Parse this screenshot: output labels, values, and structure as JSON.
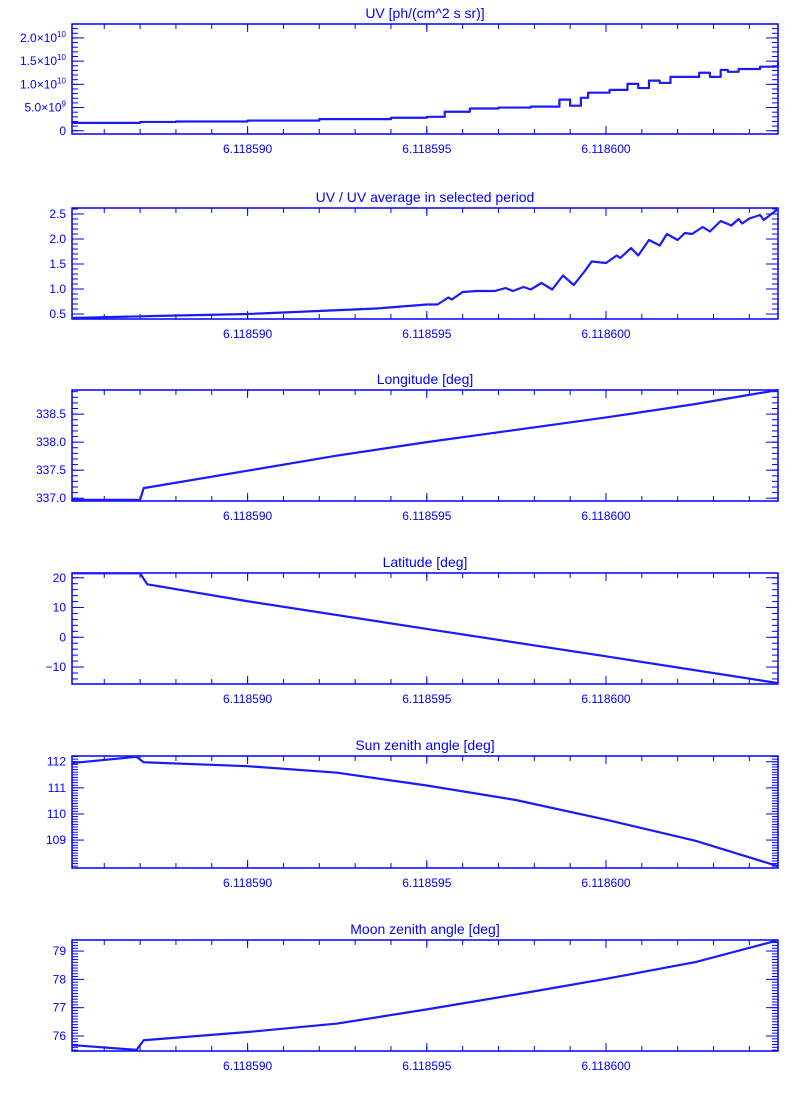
{
  "colors": {
    "axis": "#0000ff",
    "line": "#1a1aff",
    "background": "#ffffff"
  },
  "chart_data": [
    {
      "type": "line",
      "step": true,
      "title": "UV [ph/(cm^2 s sr)]",
      "xlim": [
        6.1185851,
        6.1186048
      ],
      "xticks": [
        6.11859,
        6.118595,
        6.1186
      ],
      "xtick_labels": [
        "6.118590",
        "6.118595",
        "6.118600"
      ],
      "xminor_step": 1e-06,
      "ylim": [
        -700000000.0,
        23000000000.0
      ],
      "yticks": [
        0,
        5000000000.0,
        10000000000.0,
        15000000000.0,
        20000000000.0
      ],
      "ytick_labels": [
        {
          "m": "0",
          "e": ""
        },
        {
          "m": "5.0×10",
          "e": "9"
        },
        {
          "m": "1.0×10",
          "e": "10"
        },
        {
          "m": "1.5×10",
          "e": "10"
        },
        {
          "m": "2.0×10",
          "e": "10"
        }
      ],
      "yminor_per_major": 5,
      "points": [
        [
          6.1185851,
          1700000000.0
        ],
        [
          6.118587,
          1900000000.0
        ],
        [
          6.118588,
          2000000000.0
        ],
        [
          6.11859,
          2200000000.0
        ],
        [
          6.118592,
          2500000000.0
        ],
        [
          6.118594,
          2800000000.0
        ],
        [
          6.118595,
          3000000000.0
        ],
        [
          6.1185955,
          4100000000.0
        ],
        [
          6.1185962,
          4800000000.0
        ],
        [
          6.118597,
          5000000000.0
        ],
        [
          6.1185979,
          5200000000.0
        ],
        [
          6.1185987,
          6700000000.0
        ],
        [
          6.118599,
          5400000000.0
        ],
        [
          6.1185993,
          7100000000.0
        ],
        [
          6.1185995,
          8200000000.0
        ],
        [
          6.1186001,
          8800000000.0
        ],
        [
          6.1186006,
          10100000000.0
        ],
        [
          6.1186009,
          9200000000.0
        ],
        [
          6.1186012,
          10800000000.0
        ],
        [
          6.1186015,
          10300000000.0
        ],
        [
          6.1186018,
          11600000000.0
        ],
        [
          6.1186023,
          11600000000.0
        ],
        [
          6.1186026,
          12500000000.0
        ],
        [
          6.1186029,
          11600000000.0
        ],
        [
          6.1186032,
          13100000000.0
        ],
        [
          6.1186034,
          12700000000.0
        ],
        [
          6.1186037,
          13300000000.0
        ],
        [
          6.1186043,
          13800000000.0
        ],
        [
          6.1186045,
          13800000000.0
        ],
        [
          6.1186048,
          14800000000.0
        ]
      ]
    },
    {
      "type": "line",
      "title": "UV / UV average in selected period",
      "xlim": [
        6.1185851,
        6.1186048
      ],
      "xticks": [
        6.11859,
        6.118595,
        6.1186
      ],
      "xtick_labels": [
        "6.118590",
        "6.118595",
        "6.118600"
      ],
      "xminor_step": 1e-06,
      "ylim": [
        0.4,
        2.62
      ],
      "yticks": [
        0.5,
        1.0,
        1.5,
        2.0,
        2.5
      ],
      "ytick_labels": [
        {
          "m": "0.5",
          "e": ""
        },
        {
          "m": "1.0",
          "e": ""
        },
        {
          "m": "1.5",
          "e": ""
        },
        {
          "m": "2.0",
          "e": ""
        },
        {
          "m": "2.5",
          "e": ""
        }
      ],
      "yminor_per_major": 5,
      "points": [
        [
          6.1185851,
          0.42
        ],
        [
          6.1185874,
          0.46
        ],
        [
          6.11859,
          0.5
        ],
        [
          6.1185923,
          0.57
        ],
        [
          6.1185936,
          0.61
        ],
        [
          6.118595,
          0.69
        ],
        [
          6.1185953,
          0.69
        ],
        [
          6.1185956,
          0.83
        ],
        [
          6.1185957,
          0.79
        ],
        [
          6.118596,
          0.94
        ],
        [
          6.1185964,
          0.96
        ],
        [
          6.1185969,
          0.96
        ],
        [
          6.1185972,
          1.02
        ],
        [
          6.1185974,
          0.96
        ],
        [
          6.1185977,
          1.04
        ],
        [
          6.1185979,
          0.99
        ],
        [
          6.1185982,
          1.12
        ],
        [
          6.1185985,
          0.99
        ],
        [
          6.1185988,
          1.27
        ],
        [
          6.1185991,
          1.08
        ],
        [
          6.1185994,
          1.35
        ],
        [
          6.1185996,
          1.55
        ],
        [
          6.1186,
          1.52
        ],
        [
          6.1186003,
          1.67
        ],
        [
          6.1186004,
          1.62
        ],
        [
          6.1186007,
          1.82
        ],
        [
          6.1186009,
          1.67
        ],
        [
          6.1186012,
          1.98
        ],
        [
          6.1186015,
          1.87
        ],
        [
          6.1186017,
          2.1
        ],
        [
          6.118602,
          1.98
        ],
        [
          6.1186022,
          2.12
        ],
        [
          6.1186024,
          2.1
        ],
        [
          6.1186027,
          2.24
        ],
        [
          6.1186029,
          2.15
        ],
        [
          6.1186032,
          2.36
        ],
        [
          6.1186035,
          2.27
        ],
        [
          6.1186037,
          2.4
        ],
        [
          6.1186038,
          2.31
        ],
        [
          6.118604,
          2.41
        ],
        [
          6.1186043,
          2.48
        ],
        [
          6.1186044,
          2.38
        ],
        [
          6.1186048,
          2.6
        ]
      ]
    },
    {
      "type": "line",
      "title": "Longitude [deg]",
      "xlim": [
        6.1185851,
        6.1186048
      ],
      "xticks": [
        6.11859,
        6.118595,
        6.1186
      ],
      "xtick_labels": [
        "6.118590",
        "6.118595",
        "6.118600"
      ],
      "xminor_step": 1e-06,
      "ylim": [
        336.95,
        338.93
      ],
      "yticks": [
        337.0,
        337.5,
        338.0,
        338.5
      ],
      "ytick_labels": [
        {
          "m": "337.0",
          "e": ""
        },
        {
          "m": "337.5",
          "e": ""
        },
        {
          "m": "338.0",
          "e": ""
        },
        {
          "m": "338.5",
          "e": ""
        }
      ],
      "yminor_per_major": 5,
      "points": [
        [
          6.1185851,
          336.97
        ],
        [
          6.118587,
          336.97
        ],
        [
          6.1185871,
          337.18
        ],
        [
          6.11859,
          337.49
        ],
        [
          6.1185925,
          337.76
        ],
        [
          6.118595,
          338.0
        ],
        [
          6.1185975,
          338.22
        ],
        [
          6.1186,
          338.44
        ],
        [
          6.1186025,
          338.68
        ],
        [
          6.1186048,
          338.93
        ]
      ]
    },
    {
      "type": "line",
      "title": "Latitude [deg]",
      "xlim": [
        6.1185851,
        6.1186048
      ],
      "xticks": [
        6.11859,
        6.118595,
        6.1186
      ],
      "xtick_labels": [
        "6.118590",
        "6.118595",
        "6.118600"
      ],
      "xminor_step": 1e-06,
      "ylim": [
        -15.7,
        21.6
      ],
      "yticks": [
        -10,
        0,
        10,
        20
      ],
      "ytick_labels": [
        {
          "m": "−10",
          "e": ""
        },
        {
          "m": "0",
          "e": ""
        },
        {
          "m": "10",
          "e": ""
        },
        {
          "m": "20",
          "e": ""
        }
      ],
      "yminor_per_major": 5,
      "points": [
        [
          6.1185851,
          21.5
        ],
        [
          6.118587,
          21.5
        ],
        [
          6.1185872,
          17.8
        ],
        [
          6.11859,
          12.1
        ],
        [
          6.118595,
          2.8
        ],
        [
          6.1186,
          -6.4
        ],
        [
          6.1186048,
          -15.4
        ]
      ]
    },
    {
      "type": "line",
      "title": "Sun zenith angle [deg]",
      "xlim": [
        6.1185851,
        6.1186048
      ],
      "xticks": [
        6.11859,
        6.118595,
        6.1186
      ],
      "xtick_labels": [
        "6.118590",
        "6.118595",
        "6.118600"
      ],
      "xminor_step": 1e-06,
      "ylim": [
        107.93,
        112.22
      ],
      "yticks": [
        109,
        110,
        111,
        112
      ],
      "ytick_labels": [
        {
          "m": "109",
          "e": ""
        },
        {
          "m": "110",
          "e": ""
        },
        {
          "m": "111",
          "e": ""
        },
        {
          "m": "112",
          "e": ""
        }
      ],
      "yminor_per_major": 10,
      "points": [
        [
          6.1185851,
          111.95
        ],
        [
          6.1185869,
          112.19
        ],
        [
          6.1185871,
          111.98
        ],
        [
          6.11859,
          111.83
        ],
        [
          6.1185925,
          111.58
        ],
        [
          6.118595,
          111.09
        ],
        [
          6.1185975,
          110.53
        ],
        [
          6.1186,
          109.78
        ],
        [
          6.1186025,
          108.97
        ],
        [
          6.1186048,
          108.0
        ]
      ]
    },
    {
      "type": "line",
      "title": "Moon zenith angle [deg]",
      "xlim": [
        6.1185851,
        6.1186048
      ],
      "xticks": [
        6.11859,
        6.118595,
        6.1186
      ],
      "xtick_labels": [
        "6.118590",
        "6.118595",
        "6.118600"
      ],
      "xminor_step": 1e-06,
      "ylim": [
        75.47,
        79.39
      ],
      "yticks": [
        76,
        77,
        78,
        79
      ],
      "ytick_labels": [
        {
          "m": "76",
          "e": ""
        },
        {
          "m": "77",
          "e": ""
        },
        {
          "m": "78",
          "e": ""
        },
        {
          "m": "79",
          "e": ""
        }
      ],
      "yminor_per_major": 10,
      "points": [
        [
          6.1185851,
          75.68
        ],
        [
          6.1185869,
          75.51
        ],
        [
          6.1185871,
          75.85
        ],
        [
          6.11859,
          76.14
        ],
        [
          6.1185925,
          76.44
        ],
        [
          6.118595,
          76.94
        ],
        [
          6.1185975,
          77.47
        ],
        [
          6.1186,
          78.02
        ],
        [
          6.1186025,
          78.61
        ],
        [
          6.1186048,
          79.38
        ]
      ]
    }
  ]
}
